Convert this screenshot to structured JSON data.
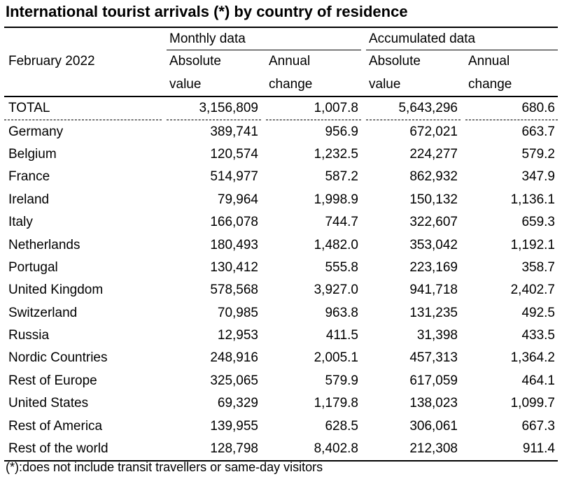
{
  "title": "International tourist arrivals (*) by country of residence",
  "header": {
    "period": "February 2022",
    "groups": [
      "Monthly data",
      "Accumulated data"
    ],
    "subcols_line1": [
      "Absolute",
      "Annual",
      "Absolute",
      "Annual"
    ],
    "subcols_line2": [
      "value",
      "change",
      "value",
      "change"
    ]
  },
  "rows": [
    {
      "country": "TOTAL",
      "m_abs": "3,156,809",
      "m_chg": "1,007.8",
      "a_abs": "5,643,296",
      "a_chg": "680.6"
    },
    {
      "country": "Germany",
      "m_abs": "389,741",
      "m_chg": "956.9",
      "a_abs": "672,021",
      "a_chg": "663.7"
    },
    {
      "country": "Belgium",
      "m_abs": "120,574",
      "m_chg": "1,232.5",
      "a_abs": "224,277",
      "a_chg": "579.2"
    },
    {
      "country": "France",
      "m_abs": "514,977",
      "m_chg": "587.2",
      "a_abs": "862,932",
      "a_chg": "347.9"
    },
    {
      "country": "Ireland",
      "m_abs": "79,964",
      "m_chg": "1,998.9",
      "a_abs": "150,132",
      "a_chg": "1,136.1"
    },
    {
      "country": "Italy",
      "m_abs": "166,078",
      "m_chg": "744.7",
      "a_abs": "322,607",
      "a_chg": "659.3"
    },
    {
      "country": "Netherlands",
      "m_abs": "180,493",
      "m_chg": "1,482.0",
      "a_abs": "353,042",
      "a_chg": "1,192.1"
    },
    {
      "country": "Portugal",
      "m_abs": "130,412",
      "m_chg": "555.8",
      "a_abs": "223,169",
      "a_chg": "358.7"
    },
    {
      "country": "United Kingdom",
      "m_abs": "578,568",
      "m_chg": "3,927.0",
      "a_abs": "941,718",
      "a_chg": "2,402.7"
    },
    {
      "country": "Switzerland",
      "m_abs": "70,985",
      "m_chg": "963.8",
      "a_abs": "131,235",
      "a_chg": "492.5"
    },
    {
      "country": "Russia",
      "m_abs": "12,953",
      "m_chg": "411.5",
      "a_abs": "31,398",
      "a_chg": "433.5"
    },
    {
      "country": "Nordic Countries",
      "m_abs": "248,916",
      "m_chg": "2,005.1",
      "a_abs": "457,313",
      "a_chg": "1,364.2"
    },
    {
      "country": "Rest of Europe",
      "m_abs": "325,065",
      "m_chg": "579.9",
      "a_abs": "617,059",
      "a_chg": "464.1"
    },
    {
      "country": "United States",
      "m_abs": "69,329",
      "m_chg": "1,179.8",
      "a_abs": "138,023",
      "a_chg": "1,099.7"
    },
    {
      "country": "Rest of America",
      "m_abs": "139,955",
      "m_chg": "628.5",
      "a_abs": "306,061",
      "a_chg": "667.3"
    },
    {
      "country": "Rest of the world",
      "m_abs": "128,798",
      "m_chg": "8,402.8",
      "a_abs": "212,308",
      "a_chg": "911.4"
    }
  ],
  "footnote": "(*):does not include transit travellers or same-day visitors"
}
